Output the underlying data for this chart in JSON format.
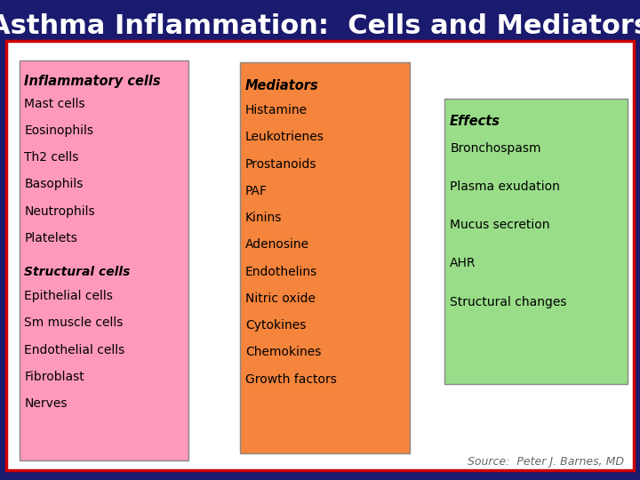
{
  "title": "Asthma Inflammation:  Cells and Mediators",
  "title_color": "#ffffff",
  "title_fontsize": 22,
  "outer_bg": "#1a1a6e",
  "inner_bg": "#ffffff",
  "border_color_outer": "#cc0000",
  "box1_color": "#ff99bb",
  "box2_color": "#f5843c",
  "box3_color": "#99dd88",
  "box1_header": "Inflammatory cells",
  "box1_lines": [
    "Mast cells",
    "Eosinophils",
    "Th2 cells",
    "Basophils",
    "Neutrophils",
    "Platelets",
    "",
    "Structural cells",
    "Epithelial cells",
    "Sm muscle cells",
    "Endothelial cells",
    "Fibroblast",
    "Nerves"
  ],
  "box1_italic_underline": [
    "Inflammatory cells",
    "Structural cells"
  ],
  "box2_header": "Mediators",
  "box2_lines": [
    "Histamine",
    "Leukotrienes",
    "Prostanoids",
    "PAF",
    "Kinins",
    "Adenosine",
    "Endothelins",
    "Nitric oxide",
    "Cytokines",
    "Chemokines",
    "Growth factors"
  ],
  "box3_header": "Effects",
  "box3_lines": [
    "Bronchospasm",
    "",
    "Plasma exudation",
    "",
    "Mucus secretion",
    "",
    "AHR",
    "",
    "Structural changes"
  ],
  "source_text": "Source:  Peter J. Barnes, MD",
  "source_color": "#666666",
  "source_fontsize": 9
}
